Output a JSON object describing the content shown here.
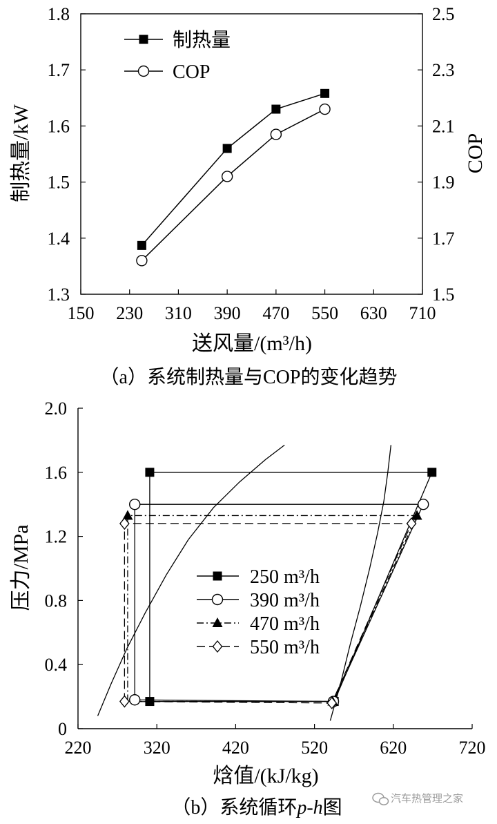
{
  "chart_data": [
    {
      "type": "line",
      "caption": "（a）系统制热量与COP的变化趋势",
      "xlabel": "送风量/(m³/h)",
      "ylabel": "制热量/kW",
      "y2label": "COP",
      "xlim": [
        150,
        710
      ],
      "ylim": [
        1.3,
        1.8
      ],
      "y2lim": [
        1.5,
        2.5
      ],
      "xticks": [
        "150",
        "230",
        "310",
        "390",
        "470",
        "550",
        "630",
        "710"
      ],
      "yticks": [
        "1.3",
        "1.4",
        "1.5",
        "1.6",
        "1.7",
        "1.8"
      ],
      "y2ticks": [
        "1.5",
        "1.7",
        "1.9",
        "2.1",
        "2.3",
        "2.5"
      ],
      "legend_position": "top-left",
      "series": [
        {
          "name": "制热量",
          "axis": "left",
          "marker": "filled-square",
          "x": [
            250,
            390,
            470,
            550
          ],
          "y": [
            1.387,
            1.56,
            1.63,
            1.658
          ]
        },
        {
          "name": "COP",
          "axis": "right",
          "marker": "open-circle",
          "x": [
            250,
            390,
            470,
            550
          ],
          "y": [
            1.62,
            1.92,
            2.07,
            2.16
          ]
        }
      ]
    },
    {
      "type": "line",
      "caption": "（b）系统循环p-h图",
      "caption_italic_part": "p-h",
      "xlabel": "焓值/(kJ/kg)",
      "ylabel": "压力/MPa",
      "xlim": [
        220,
        720
      ],
      "ylim": [
        0,
        2.0
      ],
      "xticks": [
        "220",
        "320",
        "420",
        "520",
        "620",
        "720"
      ],
      "yticks": [
        "0",
        "0.4",
        "0.8",
        "1.2",
        "1.6",
        "2.0"
      ],
      "legend_position": "center",
      "dome_curves": [
        {
          "x": [
            245,
            262,
            282,
            305,
            332,
            360,
            392,
            425,
            458,
            482
          ],
          "y": [
            0.08,
            0.28,
            0.5,
            0.72,
            0.96,
            1.18,
            1.38,
            1.54,
            1.68,
            1.77
          ]
        },
        {
          "x": [
            540,
            553,
            565,
            578,
            590,
            600,
            608,
            613,
            617
          ],
          "y": [
            0.05,
            0.28,
            0.52,
            0.76,
            1.0,
            1.22,
            1.42,
            1.6,
            1.77
          ]
        }
      ],
      "series": [
        {
          "name": "250 m³/h",
          "dash": "solid",
          "marker": "filled-square",
          "x": [
            311,
            311,
            669,
            545,
            311
          ],
          "y": [
            0.17,
            1.6,
            1.6,
            0.17,
            0.17
          ],
          "marker_points": [
            [
              311,
              0.17
            ],
            [
              311,
              1.6
            ],
            [
              669,
              1.6
            ],
            [
              545,
              0.17
            ]
          ]
        },
        {
          "name": "390 m³/h",
          "dash": "solid",
          "marker": "open-circle",
          "x": [
            292,
            292,
            658,
            544,
            292
          ],
          "y": [
            0.18,
            1.4,
            1.4,
            0.17,
            0.18
          ],
          "marker_points": [
            [
              292,
              0.18
            ],
            [
              292,
              1.4
            ],
            [
              658,
              1.4
            ],
            [
              544,
              0.17
            ]
          ]
        },
        {
          "name": "470 m³/h",
          "dash": "dash-dot",
          "marker": "filled-triangle",
          "x": [
            283,
            283,
            650,
            543,
            283
          ],
          "y": [
            0.17,
            1.33,
            1.33,
            0.17,
            0.17
          ],
          "marker_points": [
            [
              283,
              1.33
            ],
            [
              650,
              1.33
            ],
            [
              543,
              0.17
            ]
          ]
        },
        {
          "name": "550 m³/h",
          "dash": "dashed",
          "marker": "open-diamond",
          "x": [
            279,
            279,
            643,
            542,
            279
          ],
          "y": [
            0.17,
            1.28,
            1.28,
            0.16,
            0.17
          ],
          "marker_points": [
            [
              279,
              0.17
            ],
            [
              279,
              1.28
            ],
            [
              643,
              1.28
            ],
            [
              542,
              0.16
            ]
          ]
        }
      ]
    }
  ],
  "watermark": {
    "text": "汽车热管理之家",
    "icon": "wechat-icon"
  }
}
